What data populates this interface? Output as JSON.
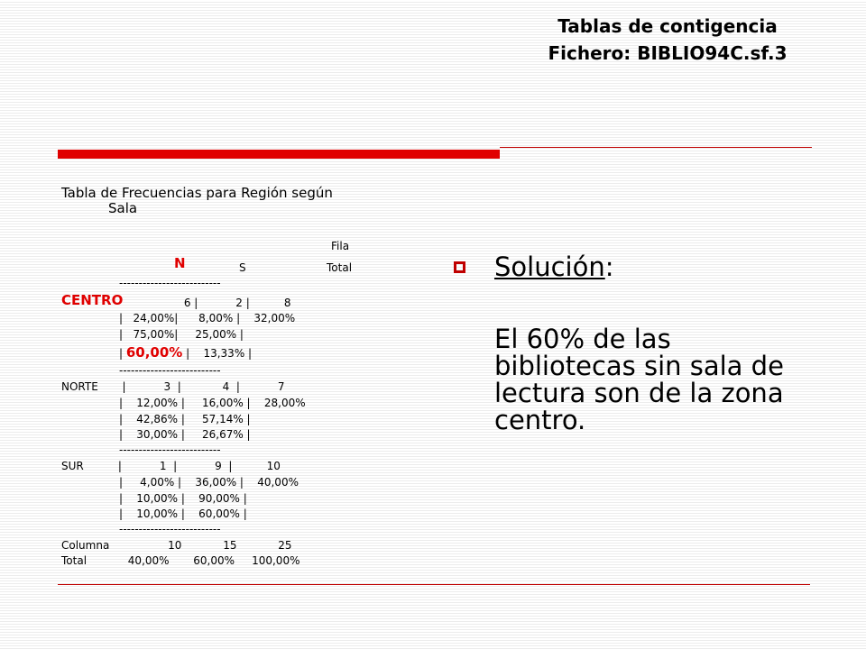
{
  "title": {
    "line1": "Tablas de contigencia",
    "line2": "Fichero: BIBLIO94C.sf.3"
  },
  "table": {
    "heading_line1": "Tabla de Frecuencias para Región según",
    "heading_line2": "Sala",
    "fila": "Fila",
    "col_n": "N",
    "col_s": "S",
    "col_total": "Total",
    "separator": "--------------------------",
    "centro_label": "CENTRO",
    "centro_counts": " 6 |           2 |          8",
    "centro_row_pct": "|   24,00%|      8,00% |    32,00%",
    "centro_col_pct": "|   75,00%|     25,00% |",
    "centro_tot_pre": "| ",
    "centro_tot_red": "60,00%",
    "centro_tot_post": " |    13,33% |",
    "norte_line": "NORTE       |           3  |            4  |           7",
    "norte_row_pct": "|    12,00% |     16,00% |    28,00%",
    "norte_col_pct": "|    42,86% |     57,14% |",
    "norte_tot_pct": "|    30,00% |     26,67% |",
    "sur_line": "SUR          |           1  |           9  |          10",
    "sur_row_pct": "|     4,00% |    36,00% |    40,00%",
    "sur_col_pct": "|    10,00% |    90,00% |",
    "sur_tot_pct": "|    10,00% |    60,00% |",
    "columna_line": "Columna                 10            15            25",
    "total_line": "Total            40,00%       60,00%     100,00%"
  },
  "solution": {
    "label": "Solución",
    "colon": ":",
    "text": "El 60% de las bibliotecas sin sala de lectura son de la zona centro."
  },
  "colors": {
    "accent": "#e00000",
    "rule": "#c00000"
  }
}
